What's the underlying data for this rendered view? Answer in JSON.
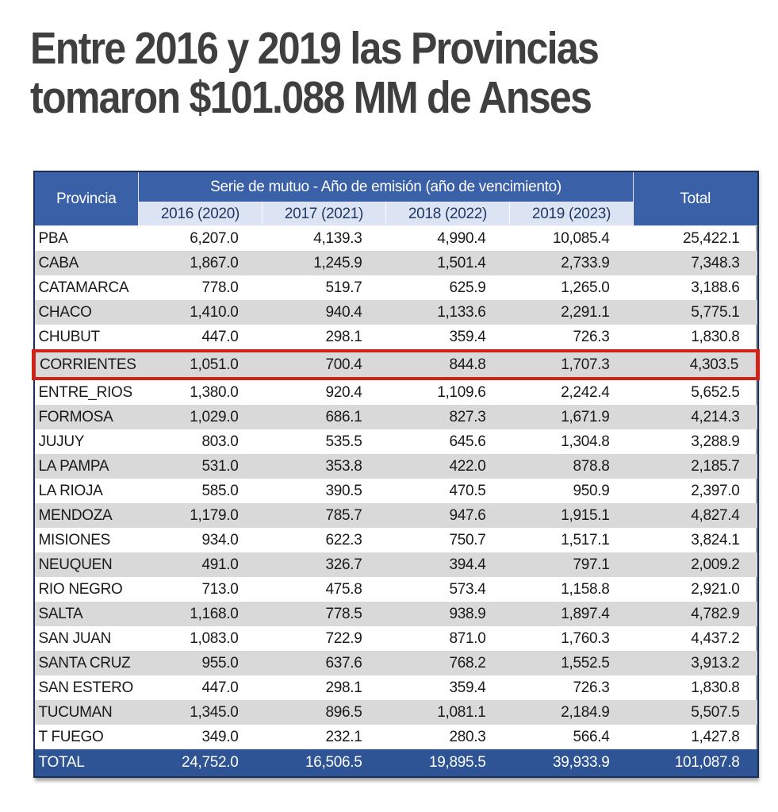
{
  "title": {
    "line1": "Entre 2016 y 2019 las Provincias",
    "line2": "tomaron $101.088 MM de Anses"
  },
  "chart_data": {
    "type": "table",
    "title": "Entre 2016 y 2019 las Provincias tomaron $101.088 MM de Anses",
    "column_group_label": "Serie de mutuo - Año de emisión (año de vencimiento)",
    "columns": [
      "Provincia",
      "2016 (2020)",
      "2017 (2021)",
      "2018 (2022)",
      "2019 (2023)",
      "Total"
    ],
    "rows": [
      {
        "provincia": "PBA",
        "values": [
          "6,207.0",
          "4,139.3",
          "4,990.4",
          "10,085.4",
          "25,422.1"
        ]
      },
      {
        "provincia": "CABA",
        "values": [
          "1,867.0",
          "1,245.9",
          "1,501.4",
          "2,733.9",
          "7,348.3"
        ]
      },
      {
        "provincia": "CATAMARCA",
        "values": [
          "778.0",
          "519.7",
          "625.9",
          "1,265.0",
          "3,188.6"
        ]
      },
      {
        "provincia": "CHACO",
        "values": [
          "1,410.0",
          "940.4",
          "1,133.6",
          "2,291.1",
          "5,775.1"
        ]
      },
      {
        "provincia": "CHUBUT",
        "values": [
          "447.0",
          "298.1",
          "359.4",
          "726.3",
          "1,830.8"
        ]
      },
      {
        "provincia": "CORRIENTES",
        "values": [
          "1,051.0",
          "700.4",
          "844.8",
          "1,707.3",
          "4,303.5"
        ]
      },
      {
        "provincia": "ENTRE_RIOS",
        "values": [
          "1,380.0",
          "920.4",
          "1,109.6",
          "2,242.4",
          "5,652.5"
        ]
      },
      {
        "provincia": "FORMOSA",
        "values": [
          "1,029.0",
          "686.1",
          "827.3",
          "1,671.9",
          "4,214.3"
        ]
      },
      {
        "provincia": "JUJUY",
        "values": [
          "803.0",
          "535.5",
          "645.6",
          "1,304.8",
          "3,288.9"
        ]
      },
      {
        "provincia": "LA PAMPA",
        "values": [
          "531.0",
          "353.8",
          "422.0",
          "878.8",
          "2,185.7"
        ]
      },
      {
        "provincia": "LA RIOJA",
        "values": [
          "585.0",
          "390.5",
          "470.5",
          "950.9",
          "2,397.0"
        ]
      },
      {
        "provincia": "MENDOZA",
        "values": [
          "1,179.0",
          "785.7",
          "947.6",
          "1,915.1",
          "4,827.4"
        ]
      },
      {
        "provincia": "MISIONES",
        "values": [
          "934.0",
          "622.3",
          "750.7",
          "1,517.1",
          "3,824.1"
        ]
      },
      {
        "provincia": "NEUQUEN",
        "values": [
          "491.0",
          "326.7",
          "394.4",
          "797.1",
          "2,009.2"
        ]
      },
      {
        "provincia": "RIO NEGRO",
        "values": [
          "713.0",
          "475.8",
          "573.4",
          "1,158.8",
          "2,921.0"
        ]
      },
      {
        "provincia": "SALTA",
        "values": [
          "1,168.0",
          "778.5",
          "938.9",
          "1,897.4",
          "4,782.9"
        ]
      },
      {
        "provincia": "SAN JUAN",
        "values": [
          "1,083.0",
          "722.9",
          "871.0",
          "1,760.3",
          "4,437.2"
        ]
      },
      {
        "provincia": "SANTA CRUZ",
        "values": [
          "955.0",
          "637.6",
          "768.2",
          "1,552.5",
          "3,913.2"
        ]
      },
      {
        "provincia": "SAN ESTERO",
        "values": [
          "447.0",
          "298.1",
          "359.4",
          "726.3",
          "1,830.8"
        ]
      },
      {
        "provincia": "TUCUMAN",
        "values": [
          "1,345.0",
          "896.5",
          "1,081.1",
          "2,184.9",
          "5,507.5"
        ]
      },
      {
        "provincia": "T FUEGO",
        "values": [
          "349.0",
          "232.1",
          "280.3",
          "566.4",
          "1,427.8"
        ]
      }
    ],
    "total_row": {
      "provincia": "TOTAL",
      "values": [
        "24,752.0",
        "16,506.5",
        "19,895.5",
        "39,933.9",
        "101,087.8"
      ]
    },
    "highlighted_row": "CORRIENTES"
  },
  "colors": {
    "header_bg": "#3a61a7",
    "subheader_bg": "#dce3f3",
    "stripe_bg": "#d9d9d9",
    "total_row_bg": "#2f5496",
    "highlight_border": "#cf2419",
    "title_text": "#3f3f3f"
  }
}
